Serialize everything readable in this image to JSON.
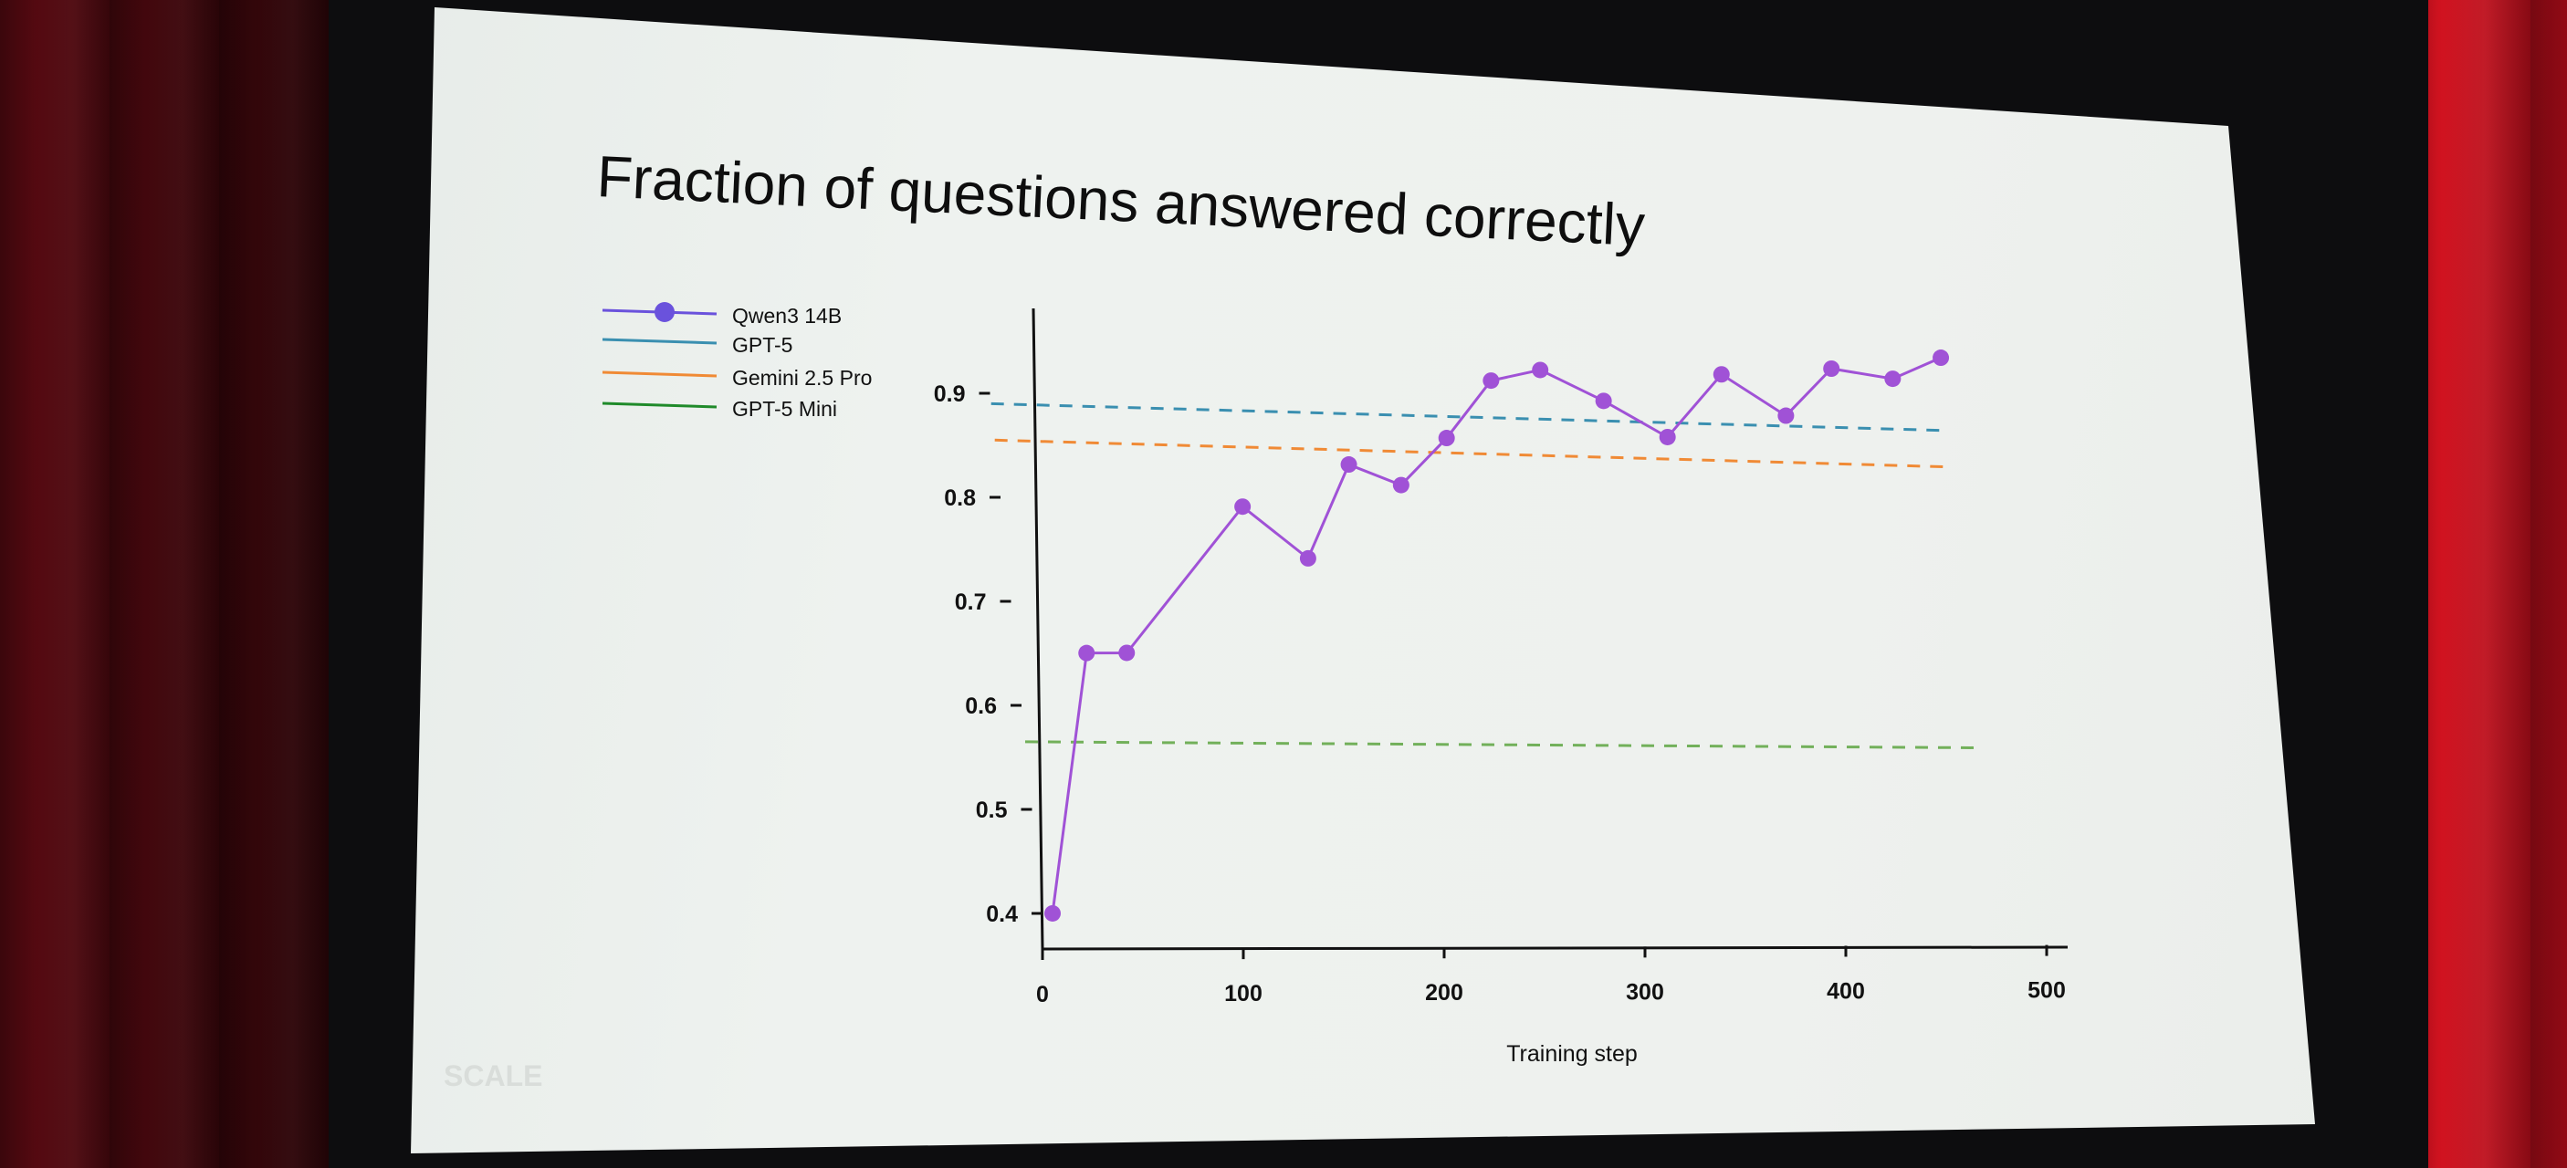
{
  "chart_data": {
    "type": "line",
    "title": "Fraction of questions answered correctly",
    "xlabel": "Training step",
    "ylabel": "",
    "xlim": [
      0,
      500
    ],
    "ylim": [
      0.38,
      0.98
    ],
    "xticks": [
      0,
      100,
      200,
      300,
      400,
      500
    ],
    "yticks": [
      0.4,
      0.5,
      0.6,
      0.7,
      0.8,
      0.9
    ],
    "grid": false,
    "legend_position": "top-left",
    "series": [
      {
        "name": "Qwen3 14B",
        "style": "solid-markers",
        "color": "#a052d6",
        "legend_color": "#6a52dc",
        "x": [
          5,
          35,
          55,
          120,
          150,
          175,
          200,
          225,
          250,
          275,
          305,
          335,
          365,
          395,
          420,
          450,
          475
        ],
        "y": [
          0.4,
          0.65,
          0.65,
          0.79,
          0.74,
          0.83,
          0.81,
          0.855,
          0.91,
          0.92,
          0.89,
          0.855,
          0.915,
          0.875,
          0.92,
          0.91,
          0.93
        ]
      },
      {
        "name": "GPT-5",
        "style": "dashed",
        "color": "#3a8fb0",
        "x": [
          0,
          475
        ],
        "y": [
          0.89,
          0.86
        ]
      },
      {
        "name": "Gemini 2.5 Pro",
        "style": "dashed",
        "color": "#f08a35",
        "x": [
          0,
          475
        ],
        "y": [
          0.855,
          0.825
        ]
      },
      {
        "name": "GPT-5 Mini",
        "style": "dashed",
        "color": "#72b05a",
        "legend_color": "#1f8a2a",
        "x": [
          0,
          475
        ],
        "y": [
          0.565,
          0.555
        ]
      }
    ]
  },
  "watermark": "SCALE"
}
